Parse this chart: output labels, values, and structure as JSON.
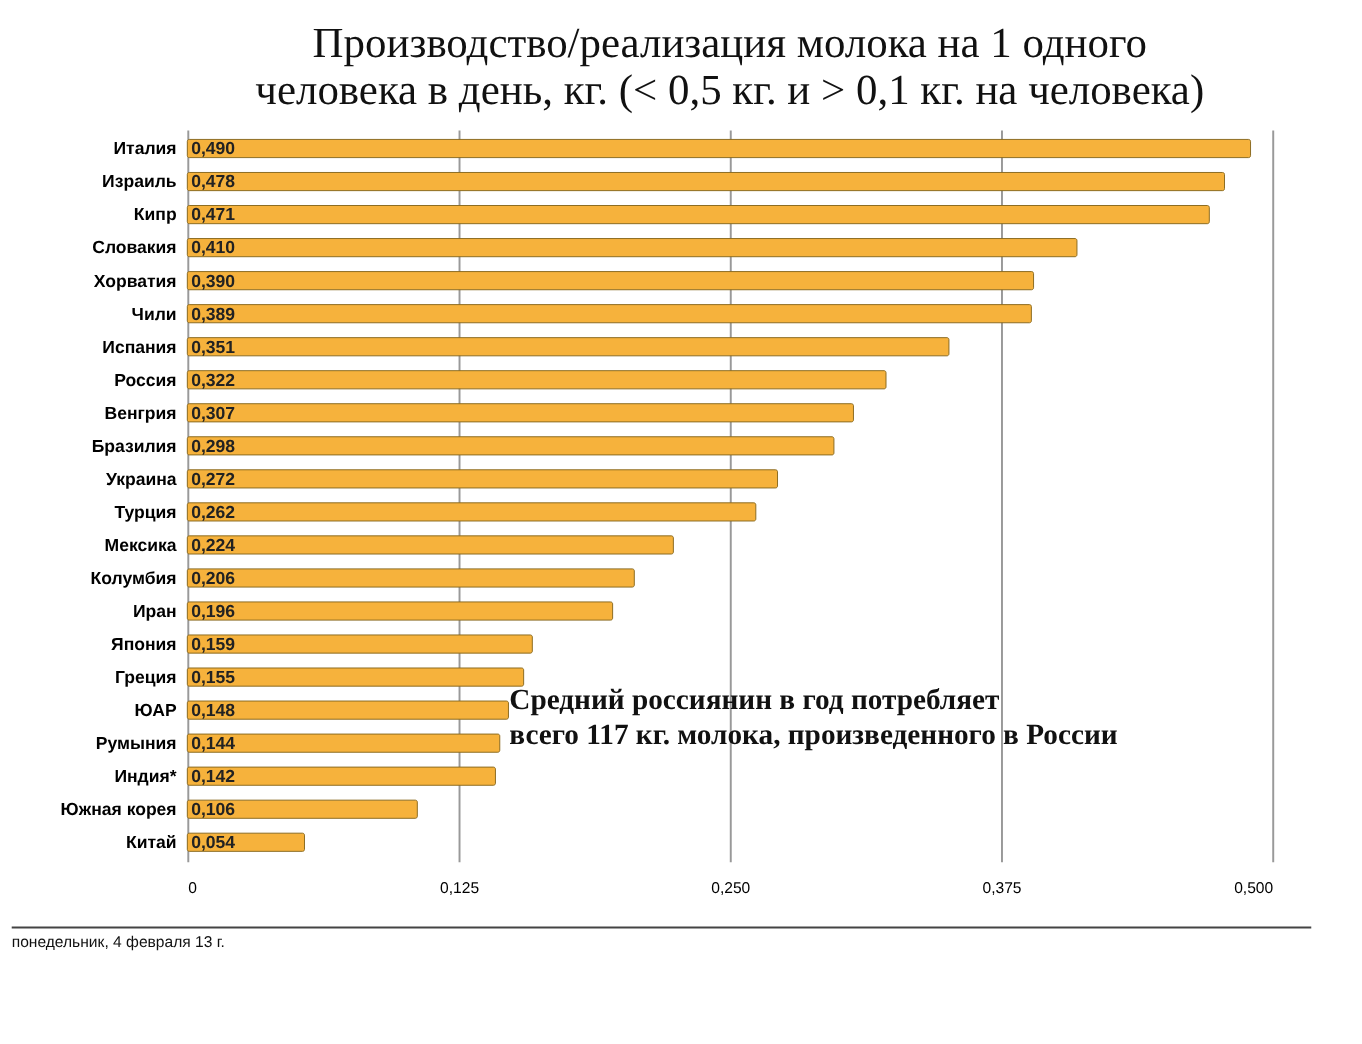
{
  "chart_data": {
    "type": "bar",
    "orientation": "horizontal",
    "title": [
      "Производство/реализация молока на 1 одного",
      "человека в день, кг. (< 0,5 кг. и > 0,1 кг. на человека)"
    ],
    "categories": [
      "Италия",
      "Израиль",
      "Кипр",
      "Словакия",
      "Хорватия",
      "Чили",
      "Испания",
      "Россия",
      "Венгрия",
      "Бразилия",
      "Украина",
      "Турция",
      "Мексика",
      "Колумбия",
      "Иран",
      "Япония",
      "Греция",
      "ЮАР",
      "Румыния",
      "Индия*",
      "Южная корея",
      "Китай"
    ],
    "values": [
      0.49,
      0.478,
      0.471,
      0.41,
      0.39,
      0.389,
      0.351,
      0.322,
      0.307,
      0.298,
      0.272,
      0.262,
      0.224,
      0.206,
      0.196,
      0.159,
      0.155,
      0.148,
      0.144,
      0.142,
      0.106,
      0.054
    ],
    "value_labels": [
      "0,490",
      "0,478",
      "0,471",
      "0,410",
      "0,390",
      "0,389",
      "0,351",
      "0,322",
      "0,307",
      "0,298",
      "0,272",
      "0,262",
      "0,224",
      "0,206",
      "0,196",
      "0,159",
      "0,155",
      "0,148",
      "0,144",
      "0,142",
      "0,106",
      "0,054"
    ],
    "color": "#f6b23c",
    "xlim": [
      0,
      0.5
    ],
    "xticks": [
      0,
      {
        "value": 0.125,
        "label": "0,125"
      },
      {
        "value": 0.25,
        "label": "0,250"
      },
      {
        "value": 0.375,
        "label": "0,375"
      },
      {
        "value": 0.5,
        "label": "0,500"
      }
    ],
    "grid": "x",
    "annotations": [
      "Средний россиянин в год потребляет\nвсего 117 кг. молока, произведенного в России",
      "понедельник, 4 февраля 13 г."
    ]
  }
}
